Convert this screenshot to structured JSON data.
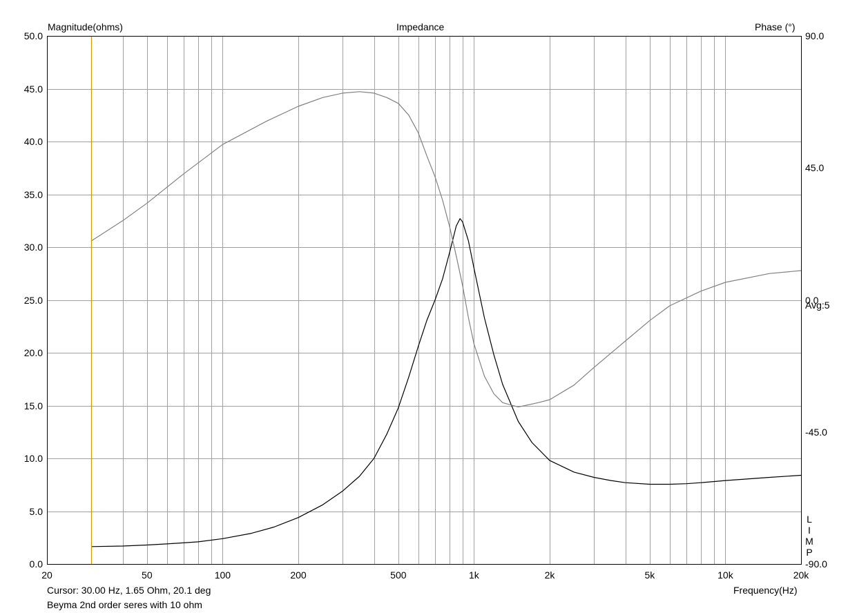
{
  "chart_data": {
    "type": "line",
    "title": "Impedance",
    "ylabel_left": "Magnitude(ohms)",
    "ylabel_right": "Phase (°)",
    "xlabel": "Frequency(Hz)",
    "x_scale": "log",
    "xlim": [
      20,
      20000
    ],
    "ylim_left": [
      0,
      50
    ],
    "ylim_right": [
      -90,
      90
    ],
    "grid": true,
    "x_ticks": [
      {
        "value": 20,
        "label": "20"
      },
      {
        "value": 50,
        "label": "50"
      },
      {
        "value": 100,
        "label": "100"
      },
      {
        "value": 200,
        "label": "200"
      },
      {
        "value": 500,
        "label": "500"
      },
      {
        "value": 1000,
        "label": "1k"
      },
      {
        "value": 2000,
        "label": "2k"
      },
      {
        "value": 5000,
        "label": "5k"
      },
      {
        "value": 10000,
        "label": "10k"
      },
      {
        "value": 20000,
        "label": "20k"
      }
    ],
    "y_ticks_left": [
      "0.0",
      "5.0",
      "10.0",
      "15.0",
      "20.0",
      "25.0",
      "30.0",
      "35.0",
      "40.0",
      "45.0",
      "50.0"
    ],
    "y_ticks_right": [
      {
        "value": 90,
        "label": "90.0"
      },
      {
        "value": 45,
        "label": "45.0"
      },
      {
        "value": 0,
        "label": "0.0"
      },
      {
        "value": -45,
        "label": "-45.0"
      },
      {
        "value": -90,
        "label": "-90.0"
      }
    ],
    "series": [
      {
        "axis": "left",
        "color": "#000000",
        "x": [
          30,
          40,
          50,
          60,
          80,
          100,
          130,
          160,
          200,
          250,
          300,
          350,
          400,
          450,
          500,
          550,
          600,
          650,
          700,
          750,
          800,
          850,
          880,
          900,
          950,
          1000,
          1100,
          1200,
          1300,
          1500,
          1700,
          2000,
          2500,
          3000,
          3500,
          4000,
          5000,
          6000,
          7000,
          8000,
          10000,
          15000,
          20000
        ],
        "values": [
          1.65,
          1.7,
          1.8,
          1.9,
          2.1,
          2.4,
          2.9,
          3.5,
          4.4,
          5.6,
          6.9,
          8.3,
          10.0,
          12.3,
          14.8,
          17.7,
          20.6,
          23.1,
          25.0,
          27.0,
          29.5,
          32.0,
          32.7,
          32.4,
          30.6,
          28.0,
          23.3,
          19.8,
          17.0,
          13.5,
          11.5,
          9.8,
          8.7,
          8.2,
          7.9,
          7.7,
          7.55,
          7.55,
          7.6,
          7.7,
          7.9,
          8.2,
          8.4
        ]
      },
      {
        "axis": "right",
        "color": "#808080",
        "x": [
          30,
          40,
          50,
          70,
          100,
          150,
          200,
          250,
          300,
          350,
          400,
          450,
          500,
          550,
          600,
          650,
          700,
          750,
          800,
          850,
          900,
          950,
          1000,
          1100,
          1200,
          1300,
          1500,
          1800,
          2000,
          2500,
          3000,
          4000,
          5000,
          6000,
          8000,
          10000,
          15000,
          20000
        ],
        "values": [
          20.1,
          27,
          33,
          43,
          53,
          61,
          66,
          69,
          70.5,
          71,
          70.5,
          69,
          67,
          63,
          57,
          49,
          42,
          34,
          25,
          15,
          5,
          -6,
          -15,
          -26,
          -32,
          -35,
          -36.5,
          -35,
          -34,
          -29,
          -23,
          -14,
          -7,
          -2,
          3,
          6,
          9,
          10
        ]
      }
    ],
    "annotations": [
      "Avg:5",
      "L",
      "I",
      "M",
      "P"
    ],
    "cursor": {
      "x": 30,
      "color": "#c8a000"
    }
  },
  "footer": {
    "cursor_text": "Cursor: 30.00 Hz, 1.65 Ohm, 20.1 deg",
    "note_text": "Beyma 2nd order seres with 10 ohm"
  }
}
